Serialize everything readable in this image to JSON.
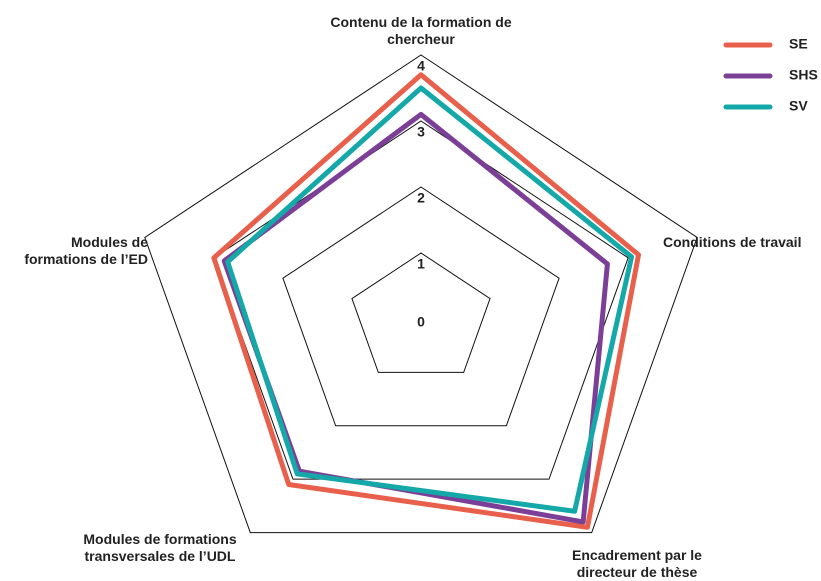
{
  "chart_data": {
    "type": "radar",
    "categories": [
      "Contenu de la formation de chercheur",
      "Conditions de travail",
      "Encadrement par le directeur de thèse",
      "Modules de formations transversales de l’UDL",
      "Modules de formations de l’ED"
    ],
    "series": [
      {
        "name": "SE",
        "color": "#e8604c",
        "values": [
          3.7,
          3.15,
          3.9,
          3.1,
          3.0
        ]
      },
      {
        "name": "SHS",
        "color": "#7b3f98",
        "values": [
          3.1,
          2.7,
          3.8,
          2.85,
          2.85
        ]
      },
      {
        "name": "SV",
        "color": "#14a8a8",
        "values": [
          3.5,
          3.05,
          3.6,
          2.9,
          2.8
        ]
      }
    ],
    "ylim": [
      0,
      4
    ],
    "yticks": [
      0,
      1,
      2,
      3,
      4
    ],
    "legend": "upper right"
  }
}
